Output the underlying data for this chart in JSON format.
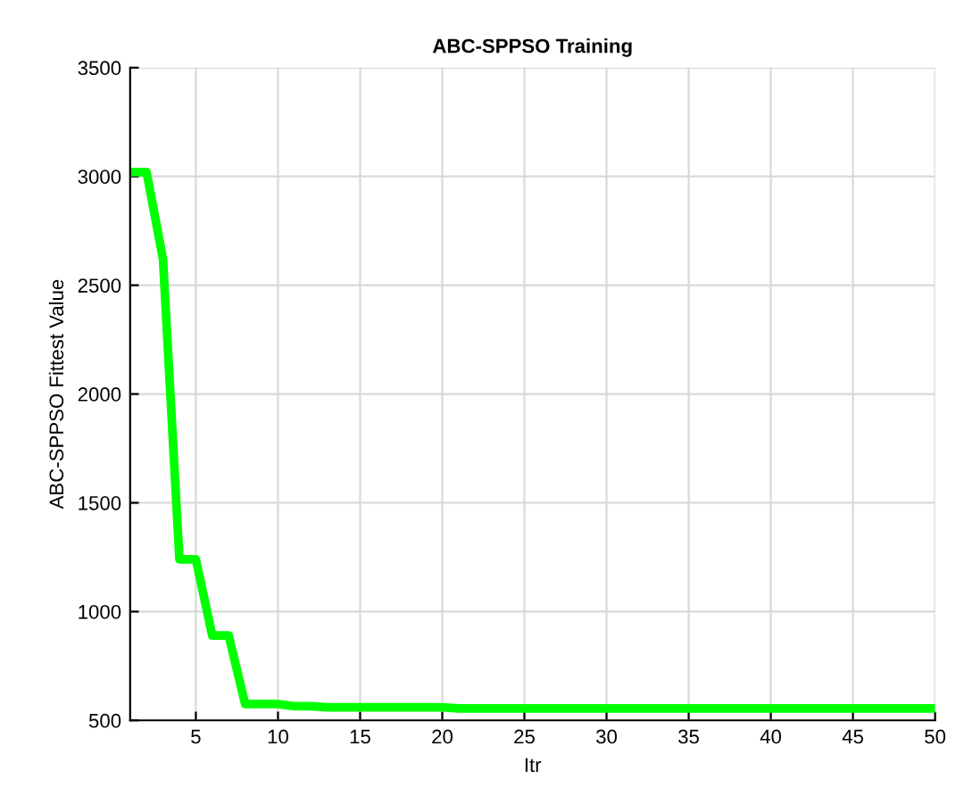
{
  "chart_data": {
    "type": "line",
    "title": "ABC-SPPSO Training",
    "xlabel": "Itr",
    "ylabel": "ABC-SPPSO Fittest Value",
    "x": [
      1,
      2,
      3,
      4,
      5,
      6,
      7,
      8,
      9,
      10,
      11,
      12,
      13,
      14,
      15,
      16,
      17,
      18,
      19,
      20,
      21,
      25,
      30,
      35,
      40,
      45,
      50
    ],
    "series": [
      {
        "color": "#00ff00",
        "values": [
          3020,
          3020,
          2620,
          1240,
          1240,
          890,
          890,
          575,
          575,
          575,
          565,
          565,
          560,
          560,
          560,
          560,
          560,
          560,
          560,
          560,
          555,
          555,
          555,
          555,
          555,
          555,
          555
        ]
      }
    ],
    "xlim": [
      1,
      50
    ],
    "ylim": [
      500,
      3500
    ],
    "xticks": [
      5,
      10,
      15,
      20,
      25,
      30,
      35,
      40,
      45,
      50
    ],
    "yticks": [
      500,
      1000,
      1500,
      2000,
      2500,
      3000,
      3500
    ],
    "grid": true,
    "marker": "none",
    "line_style": "solid"
  }
}
